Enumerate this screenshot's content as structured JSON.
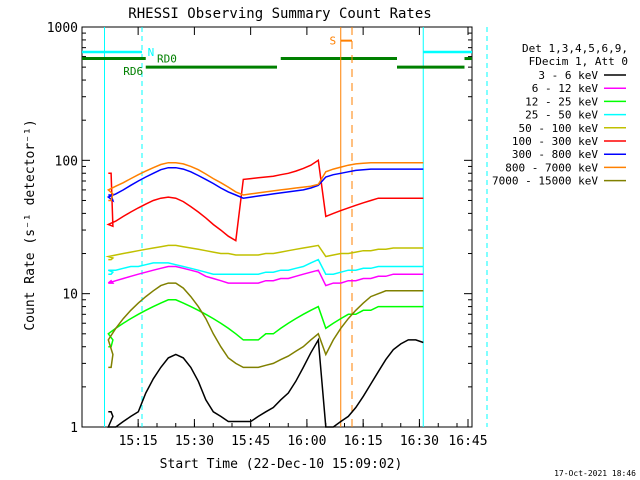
{
  "chart_data": {
    "type": "line",
    "title": "RHESSI Observing Summary Count Rates",
    "xlabel": "Start Time (22-Dec-10 15:09:02)",
    "ylabel": "Count Rate (s⁻¹ detector⁻¹)",
    "yscale": "log",
    "ylim": [
      1,
      1000
    ],
    "xlim_minutes": [
      15.0,
      49.5
    ],
    "x_ticks": [
      "15:15",
      "15:30",
      "15:45",
      "16:00",
      "16:15",
      "16:30",
      "16:45"
    ],
    "y_ticks": [
      "1",
      "10",
      "100",
      "1000"
    ],
    "grid": false,
    "legend_header": [
      "Det 1,3,4,5,6,9,",
      "FDecim 1, Att 0"
    ],
    "legend_position": "right",
    "footer_date": "17-Oct-2021 18:46",
    "flags": {
      "N": {
        "label": "N",
        "color": "#00ffff"
      },
      "RD0": {
        "label": "RD0",
        "color": "#008000"
      },
      "RD6": {
        "label": "RD6",
        "color": "#008000"
      },
      "S": {
        "label": "S",
        "color": "#ff8000"
      }
    },
    "x_minutes_since_15_00": [
      13,
      16,
      18,
      20,
      22,
      24,
      26,
      28,
      30,
      32,
      34,
      36,
      38,
      40,
      42,
      44,
      46,
      48,
      50,
      52,
      54,
      56,
      58,
      60,
      62,
      64,
      66,
      68,
      70,
      72,
      74,
      76,
      78,
      80,
      82,
      84,
      86,
      88,
      90,
      92,
      94,
      96,
      98,
      100,
      102,
      104
    ],
    "series": [
      {
        "name": "3 - 6 keV",
        "color": "#000000",
        "values": [
          1.3,
          1.3,
          1.2,
          1.0,
          1.0,
          1.1,
          1.2,
          1.3,
          1.8,
          2.3,
          2.8,
          3.3,
          3.5,
          3.3,
          2.8,
          2.2,
          1.6,
          1.3,
          1.2,
          1.1,
          1.1,
          1.1,
          1.1,
          1.2,
          1.3,
          1.4,
          1.6,
          1.8,
          2.2,
          2.8,
          3.6,
          4.5,
          1.0,
          1.0,
          1.1,
          1.2,
          1.4,
          1.7,
          2.1,
          2.6,
          3.2,
          3.8,
          4.2,
          4.5,
          4.5,
          4.3
        ]
      },
      {
        "name": "6 - 12 keV",
        "color": "#ff00ff",
        "values": [
          12,
          12.5,
          12,
          12,
          12.5,
          13,
          13.5,
          14,
          14.5,
          15,
          15.5,
          16,
          16,
          15.5,
          15,
          14.5,
          13.5,
          13,
          12.5,
          12,
          12,
          12,
          12,
          12,
          12.5,
          12.5,
          13,
          13,
          13.5,
          14,
          14.5,
          15,
          11.5,
          12,
          12,
          12.5,
          12.5,
          13,
          13,
          13.5,
          13.5,
          14,
          14,
          14,
          14,
          14
        ]
      },
      {
        "name": "12 - 25 keV",
        "color": "#00ff00",
        "values": [
          4.0,
          4.0,
          4.5,
          5.0,
          5.5,
          6.0,
          6.5,
          7.0,
          7.5,
          8.0,
          8.5,
          9.0,
          9.0,
          8.5,
          8.0,
          7.5,
          7.0,
          6.5,
          6.0,
          5.5,
          5.0,
          4.5,
          4.5,
          4.5,
          5.0,
          5.0,
          5.5,
          6.0,
          6.5,
          7.0,
          7.5,
          8.0,
          5.5,
          6.0,
          6.5,
          7.0,
          7.0,
          7.5,
          7.5,
          8.0,
          8.0,
          8.0,
          8.0,
          8.0,
          8.0,
          8.0
        ]
      },
      {
        "name": "25 - 50 keV",
        "color": "#00ffff",
        "values": [
          14,
          14,
          14.5,
          15,
          15,
          15.5,
          16,
          16,
          16.5,
          17,
          17,
          17,
          16.5,
          16,
          15.5,
          15,
          14.5,
          14,
          14,
          14,
          14,
          14,
          14,
          14,
          14.5,
          14.5,
          15,
          15,
          15.5,
          16,
          17,
          18,
          14,
          14,
          14.5,
          15,
          15,
          15.5,
          15.5,
          16,
          16,
          16,
          16,
          16,
          16,
          16
        ]
      },
      {
        "name": "50 - 100 keV",
        "color": "#c0c000",
        "values": [
          18,
          18,
          18.5,
          19,
          19.5,
          20,
          20.5,
          21,
          21.5,
          22,
          22.5,
          23,
          23,
          22.5,
          22,
          21.5,
          21,
          20.5,
          20,
          20,
          19.5,
          19.5,
          19.5,
          19.5,
          20,
          20,
          20.5,
          21,
          21.5,
          22,
          22.5,
          23,
          19,
          19.5,
          20,
          20,
          20.5,
          21,
          21,
          21.5,
          21.5,
          22,
          22,
          22,
          22,
          22
        ]
      },
      {
        "name": "100 - 300 keV",
        "color": "#ff0000",
        "values": [
          80,
          80,
          32,
          33,
          35,
          38,
          41,
          44,
          47,
          50,
          52,
          53,
          52,
          49,
          45,
          41,
          37,
          33,
          30,
          27,
          25,
          72,
          73,
          74,
          75,
          76,
          78,
          80,
          83,
          87,
          92,
          100,
          38,
          40,
          42,
          44,
          46,
          48,
          50,
          52,
          52,
          52,
          52,
          52,
          52,
          52
        ]
      },
      {
        "name": "300 - 800 keV",
        "color": "#0000ff",
        "values": [
          55,
          55,
          50,
          53,
          56,
          60,
          65,
          70,
          75,
          80,
          85,
          88,
          88,
          86,
          82,
          77,
          72,
          67,
          62,
          58,
          55,
          52,
          53,
          54,
          55,
          56,
          57,
          58,
          59,
          60,
          62,
          65,
          75,
          78,
          80,
          82,
          84,
          85,
          86,
          86,
          86,
          86,
          86,
          86,
          86,
          86
        ]
      },
      {
        "name": "800 - 7000 keV",
        "color": "#ff8000",
        "values": [
          50,
          50,
          56,
          60,
          64,
          68,
          73,
          78,
          83,
          88,
          93,
          96,
          96,
          94,
          90,
          85,
          79,
          73,
          68,
          63,
          58,
          55,
          56,
          57,
          58,
          59,
          60,
          61,
          62,
          63,
          64,
          66,
          82,
          86,
          89,
          92,
          94,
          95,
          96,
          96,
          96,
          96,
          96,
          96,
          96,
          96
        ]
      },
      {
        "name": "7000 - 15000 keV",
        "color": "#808000",
        "values": [
          2.8,
          2.8,
          3.5,
          4.5,
          5.5,
          6.5,
          7.5,
          8.5,
          9.5,
          10.5,
          11.5,
          12.0,
          12.0,
          11.0,
          9.5,
          8.0,
          6.5,
          5.0,
          4.0,
          3.3,
          3.0,
          2.8,
          2.8,
          2.8,
          2.9,
          3.0,
          3.2,
          3.4,
          3.7,
          4.0,
          4.5,
          5.0,
          3.5,
          4.5,
          5.5,
          6.5,
          7.5,
          8.5,
          9.5,
          10.0,
          10.5,
          10.5,
          10.5,
          10.5,
          10.5,
          10.5
        ]
      }
    ]
  }
}
